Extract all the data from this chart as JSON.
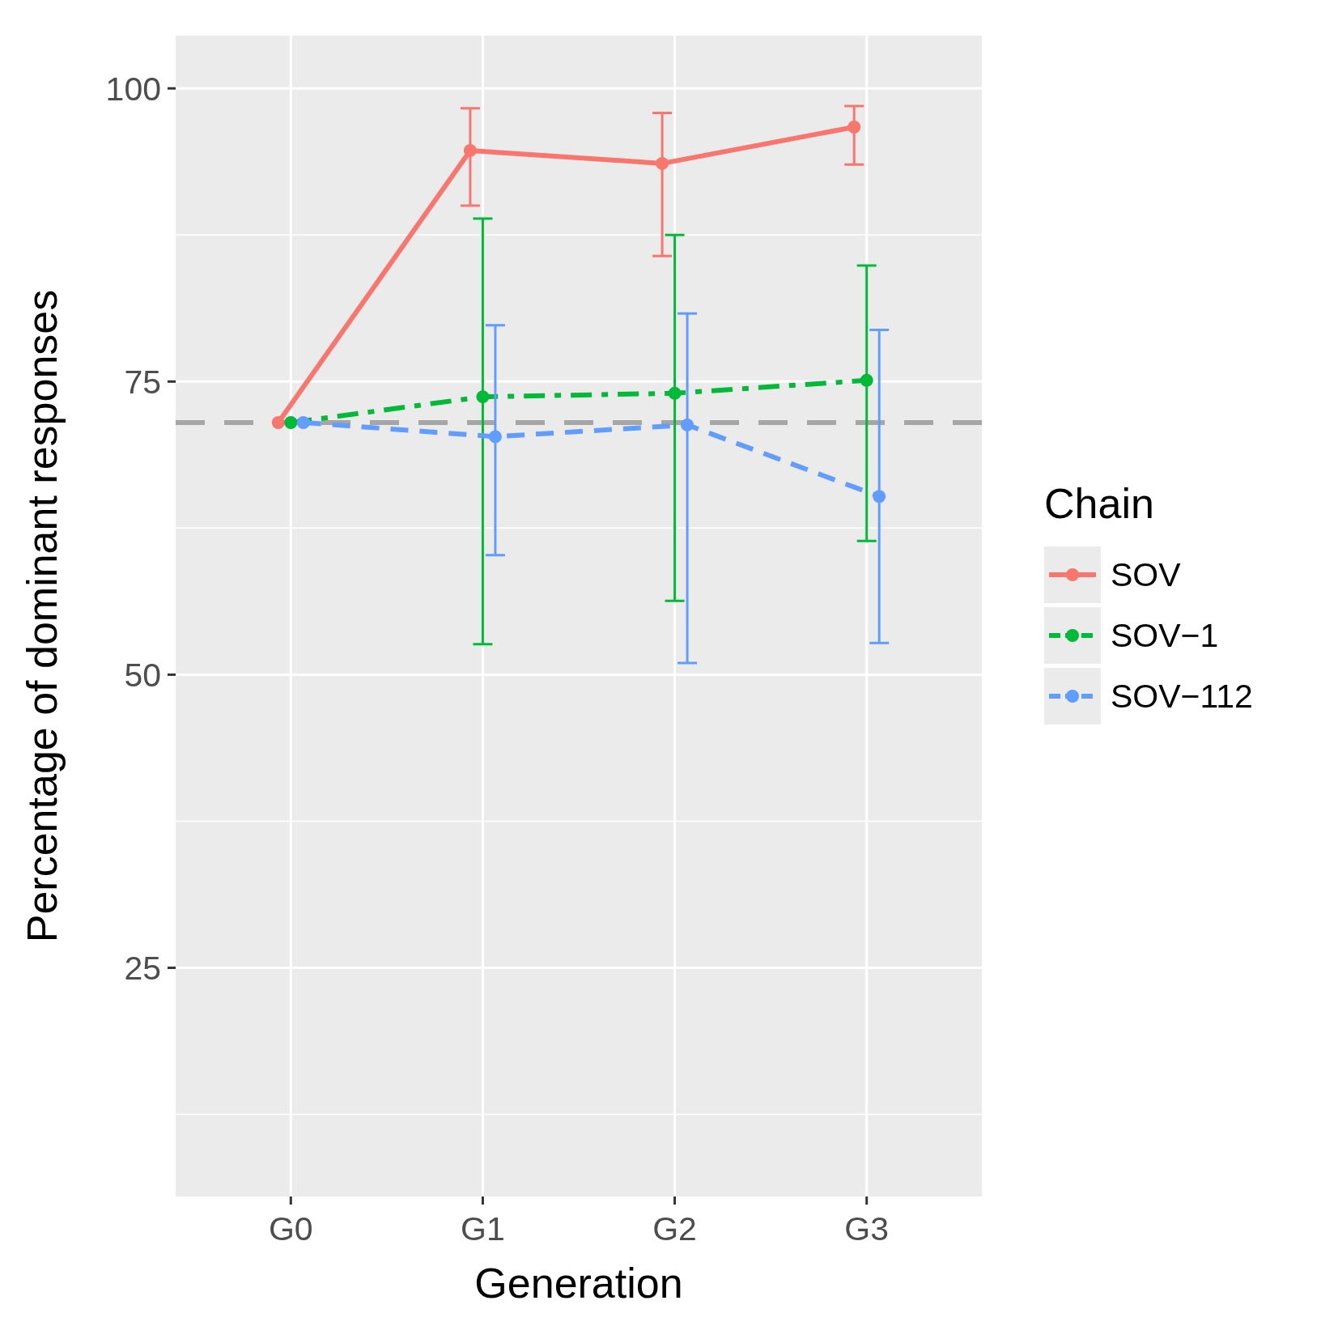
{
  "chart_data": {
    "type": "line",
    "xlabel": "Generation",
    "ylabel": "Percentage of dominant responses",
    "legend_title": "Chain",
    "categories": [
      "G0",
      "G1",
      "G2",
      "G3"
    ],
    "ylim": [
      5.5,
      104.5
    ],
    "yticks": [
      {
        "value": 12.5,
        "label": null
      },
      25,
      {
        "value": 37.5,
        "label": null
      },
      50,
      {
        "value": 62.5,
        "label": null
      },
      75,
      {
        "value": 87.5,
        "label": null
      },
      100
    ],
    "grid": true,
    "legend": "right",
    "marker": "circle",
    "ref_lines": [
      {
        "axis": "y",
        "value": 71.5,
        "color": "#a6a6a6",
        "line_style": "dashed"
      }
    ],
    "series": [
      {
        "name": "SOV",
        "color": "#f8766d",
        "line_style": "solid",
        "values": [
          71.5,
          94.7,
          93.6,
          96.7
        ],
        "errors": [
          null,
          [
            90.0,
            98.3
          ],
          [
            85.7,
            97.9
          ],
          [
            93.5,
            98.5
          ]
        ]
      },
      {
        "name": "SOV−1",
        "color": "#00ba38",
        "line_style": "dashed",
        "values": [
          71.5,
          73.7,
          74.0,
          75.1
        ],
        "errors": [
          null,
          [
            52.6,
            88.9
          ],
          [
            56.3,
            87.5
          ],
          [
            61.4,
            84.9
          ]
        ]
      },
      {
        "name": "SOV−112",
        "color": "#619cff",
        "line_style": "dashed",
        "values": [
          71.5,
          70.3,
          71.3,
          65.2
        ],
        "errors": [
          null,
          [
            60.2,
            79.8
          ],
          [
            51.0,
            80.8
          ],
          [
            52.7,
            79.4
          ]
        ]
      }
    ]
  }
}
